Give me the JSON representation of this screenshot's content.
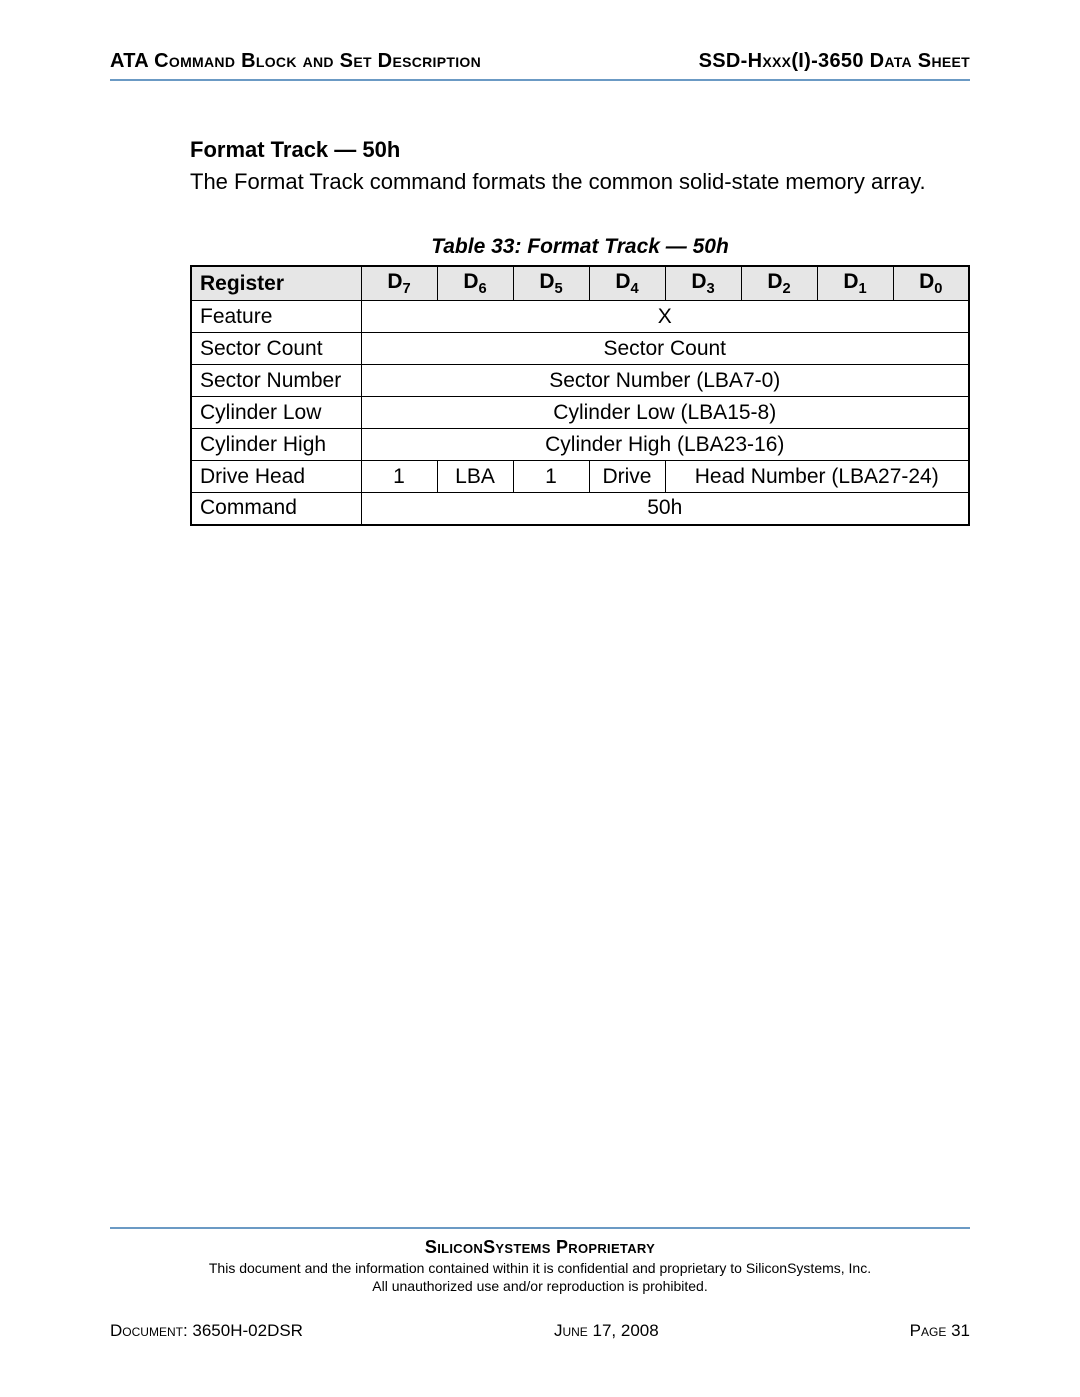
{
  "header": {
    "left_html": "ATA C<span class='sc'>ommand</span> B<span class='sc'>lock and</span> S<span class='sc'>et</span> D<span class='sc'>escription</span>",
    "left": "ATA Command Block and Set Description",
    "right_html": "SSD-H<span class='sc'>xxx</span>(I)-3650 D<span class='sc'>ata</span> S<span class='sc'>heet</span>",
    "right": "SSD-Hxxx(I)-3650 Data Sheet"
  },
  "section": {
    "title": "Format Track — 50h",
    "description": "The Format Track command formats the common solid-state memory array."
  },
  "table": {
    "caption": "Table 33:  Format Track — 50h",
    "header": {
      "register": "Register",
      "bits": [
        "D",
        "D",
        "D",
        "D",
        "D",
        "D",
        "D",
        "D"
      ],
      "bit_sub": [
        "7",
        "6",
        "5",
        "4",
        "3",
        "2",
        "1",
        "0"
      ]
    },
    "rows": [
      {
        "register": "Feature",
        "type": "span",
        "value": "X"
      },
      {
        "register": "Sector Count",
        "type": "span",
        "value": "Sector Count"
      },
      {
        "register": "Sector Number",
        "type": "span",
        "value": "Sector Number (LBA7-0)"
      },
      {
        "register": "Cylinder Low",
        "type": "span",
        "value": "Cylinder Low (LBA15-8)"
      },
      {
        "register": "Cylinder High",
        "type": "span",
        "value": "Cylinder High (LBA23-16)"
      },
      {
        "register": "Drive Head",
        "type": "drivehead",
        "cells": [
          "1",
          "LBA",
          "1",
          "Drive",
          "Head Number (LBA27-24)"
        ]
      },
      {
        "register": "Command",
        "type": "span",
        "value": "50h"
      }
    ]
  },
  "footer": {
    "proprietary": "SiliconSystems Proprietary",
    "disclaimer1": "This document and the information contained within it is confidential and proprietary to SiliconSystems, Inc.",
    "disclaimer2": "All unauthorized use and/or reproduction is prohibited.",
    "doc_label": "Document",
    "doc_value": ": 3650H-02DSR",
    "date": "June 17, 2008",
    "page_label": "Page",
    "page_value": " 31"
  },
  "colors": {
    "rule": "#6b9ac4",
    "header_bg": "#e6e6e6",
    "text": "#000000",
    "page_bg": "#ffffff"
  }
}
